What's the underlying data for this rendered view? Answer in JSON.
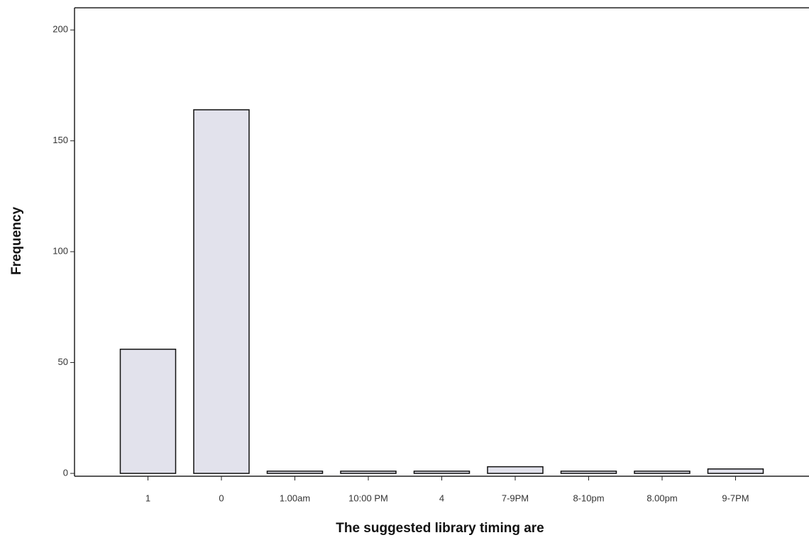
{
  "chart_data": {
    "type": "bar",
    "x_label": "The suggested library timing are",
    "y_label": "Frequency",
    "categories": [
      "1",
      "0",
      "1.00am",
      "10:00 PM",
      "4",
      "7-9PM",
      "8-10pm",
      "8.00pm",
      "9-7PM"
    ],
    "values": [
      56,
      164,
      1,
      1,
      1,
      3,
      1,
      1,
      2
    ],
    "color": "#e2e2ec",
    "ylim": [
      0,
      210
    ],
    "yticks": [
      0,
      50,
      100,
      150,
      200
    ],
    "grid": false
  }
}
